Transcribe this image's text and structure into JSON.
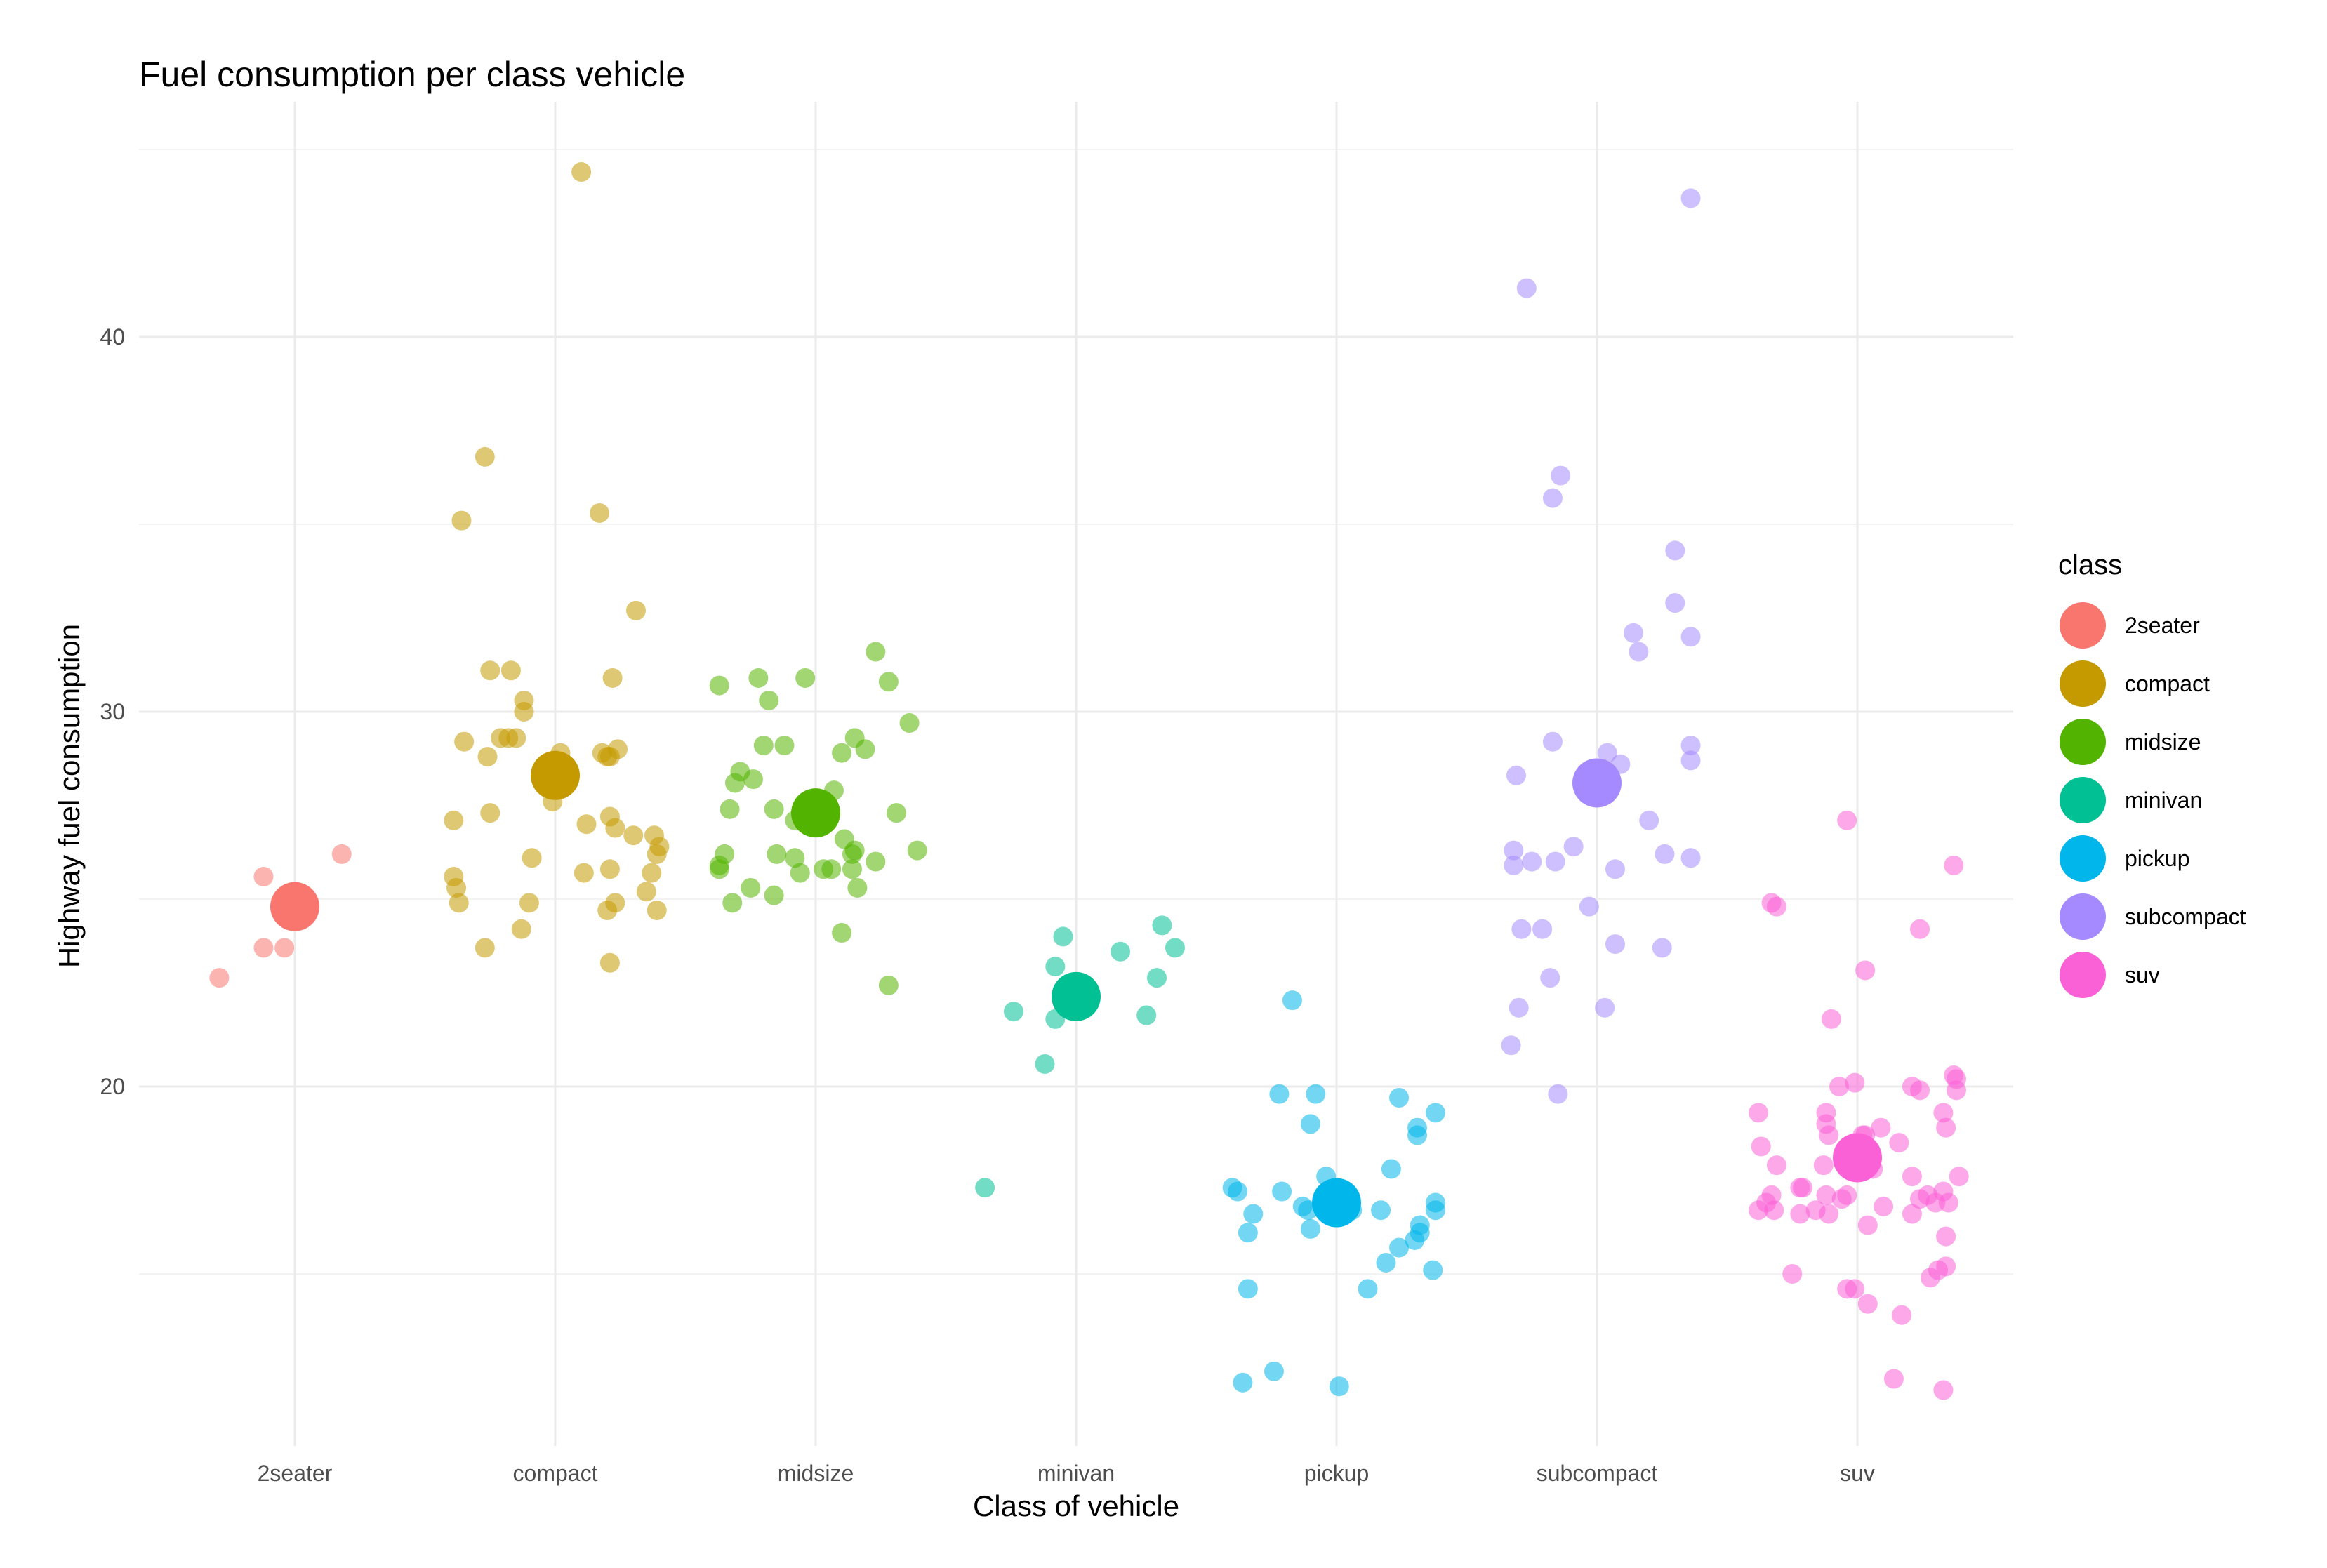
{
  "chart_data": {
    "type": "scatter",
    "title": "Fuel consumption per class vehicle",
    "xlabel": "Class of vehicle",
    "ylabel": "Highway fuel consumption",
    "categories": [
      "2seater",
      "compact",
      "midsize",
      "minivan",
      "pickup",
      "subcompact",
      "suv"
    ],
    "ylim": [
      10.5,
      45.5
    ],
    "yticks": [
      20,
      30,
      40
    ],
    "grid": true,
    "legend": {
      "title": "class",
      "placement": "right"
    },
    "colors": [
      "#F8766D",
      "#C49A00",
      "#53B400",
      "#00C094",
      "#00B6EB",
      "#A58AFF",
      "#FB61D7"
    ],
    "series": [
      {
        "name": "2seater",
        "mean": 24.8,
        "points": [
          [
            -0.12,
            23.7
          ],
          [
            -0.29,
            22.9
          ],
          [
            -0.12,
            25.6
          ],
          [
            0.18,
            26.2
          ],
          [
            -0.04,
            23.7
          ]
        ]
      },
      {
        "name": "compact",
        "mean": 28.3,
        "points": [
          [
            0.1,
            44.4
          ],
          [
            -0.27,
            36.8
          ],
          [
            -0.36,
            35.1
          ],
          [
            0.17,
            35.3
          ],
          [
            0.31,
            32.7
          ],
          [
            -0.25,
            31.1
          ],
          [
            -0.17,
            31.1
          ],
          [
            0.22,
            30.9
          ],
          [
            -0.12,
            30.3
          ],
          [
            -0.12,
            30.0
          ],
          [
            -0.35,
            29.2
          ],
          [
            -0.21,
            29.3
          ],
          [
            -0.18,
            29.3
          ],
          [
            -0.15,
            29.3
          ],
          [
            0.02,
            28.9
          ],
          [
            0.18,
            28.9
          ],
          [
            0.24,
            29.0
          ],
          [
            0.2,
            28.8
          ],
          [
            0.21,
            28.8
          ],
          [
            -0.26,
            28.8
          ],
          [
            -0.01,
            27.6
          ],
          [
            -0.39,
            27.1
          ],
          [
            -0.25,
            27.3
          ],
          [
            0.12,
            27.0
          ],
          [
            0.21,
            27.2
          ],
          [
            0.23,
            26.9
          ],
          [
            0.3,
            26.7
          ],
          [
            0.38,
            26.7
          ],
          [
            0.4,
            26.4
          ],
          [
            0.39,
            26.2
          ],
          [
            -0.09,
            26.1
          ],
          [
            -0.39,
            25.6
          ],
          [
            0.11,
            25.7
          ],
          [
            0.21,
            25.8
          ],
          [
            0.37,
            25.7
          ],
          [
            -0.38,
            25.3
          ],
          [
            0.35,
            25.2
          ],
          [
            -0.37,
            24.9
          ],
          [
            -0.1,
            24.9
          ],
          [
            0.23,
            24.9
          ],
          [
            0.2,
            24.7
          ],
          [
            0.39,
            24.7
          ],
          [
            -0.13,
            24.2
          ],
          [
            -0.27,
            23.7
          ],
          [
            0.21,
            23.3
          ]
        ]
      },
      {
        "name": "midsize",
        "mean": 27.3,
        "points": [
          [
            0.23,
            31.6
          ],
          [
            -0.37,
            30.7
          ],
          [
            -0.22,
            30.9
          ],
          [
            -0.04,
            30.9
          ],
          [
            -0.18,
            30.3
          ],
          [
            0.28,
            30.8
          ],
          [
            0.36,
            29.7
          ],
          [
            -0.2,
            29.1
          ],
          [
            -0.12,
            29.1
          ],
          [
            0.15,
            29.3
          ],
          [
            0.19,
            29.0
          ],
          [
            0.1,
            28.9
          ],
          [
            -0.29,
            28.4
          ],
          [
            -0.31,
            28.1
          ],
          [
            -0.24,
            28.2
          ],
          [
            0.07,
            27.9
          ],
          [
            -0.33,
            27.4
          ],
          [
            -0.16,
            27.4
          ],
          [
            -0.08,
            27.1
          ],
          [
            0.31,
            27.3
          ],
          [
            0.11,
            26.6
          ],
          [
            0.14,
            26.2
          ],
          [
            0.15,
            26.3
          ],
          [
            0.23,
            26.0
          ],
          [
            0.39,
            26.3
          ],
          [
            -0.35,
            26.2
          ],
          [
            -0.37,
            25.9
          ],
          [
            -0.15,
            26.2
          ],
          [
            -0.08,
            26.1
          ],
          [
            -0.06,
            25.7
          ],
          [
            0.03,
            25.8
          ],
          [
            0.06,
            25.8
          ],
          [
            0.14,
            25.8
          ],
          [
            -0.37,
            25.8
          ],
          [
            -0.25,
            25.3
          ],
          [
            -0.16,
            25.1
          ],
          [
            0.16,
            25.3
          ],
          [
            -0.32,
            24.9
          ],
          [
            0.1,
            24.1
          ],
          [
            0.28,
            22.7
          ]
        ]
      },
      {
        "name": "minivan",
        "mean": 22.4,
        "points": [
          [
            -0.05,
            24.0
          ],
          [
            0.33,
            24.3
          ],
          [
            0.38,
            23.7
          ],
          [
            0.17,
            23.6
          ],
          [
            -0.08,
            23.2
          ],
          [
            0.31,
            22.9
          ],
          [
            -0.24,
            22.0
          ],
          [
            -0.08,
            21.8
          ],
          [
            0.27,
            21.9
          ],
          [
            -0.12,
            20.6
          ],
          [
            -0.35,
            17.3
          ]
        ]
      },
      {
        "name": "pickup",
        "mean": 16.9,
        "points": [
          [
            -0.17,
            22.3
          ],
          [
            -0.22,
            19.8
          ],
          [
            -0.08,
            19.8
          ],
          [
            0.24,
            19.7
          ],
          [
            0.38,
            19.3
          ],
          [
            0.31,
            18.9
          ],
          [
            0.31,
            18.7
          ],
          [
            -0.1,
            19.0
          ],
          [
            -0.04,
            17.6
          ],
          [
            0.21,
            17.8
          ],
          [
            -0.4,
            17.3
          ],
          [
            -0.38,
            17.2
          ],
          [
            -0.21,
            17.2
          ],
          [
            -0.13,
            16.8
          ],
          [
            -0.11,
            16.7
          ],
          [
            -0.32,
            16.6
          ],
          [
            0.06,
            16.7
          ],
          [
            0.17,
            16.7
          ],
          [
            0.38,
            16.9
          ],
          [
            0.38,
            16.7
          ],
          [
            -0.34,
            16.1
          ],
          [
            -0.1,
            16.2
          ],
          [
            0.32,
            16.3
          ],
          [
            0.32,
            16.1
          ],
          [
            0.3,
            15.9
          ],
          [
            0.24,
            15.7
          ],
          [
            0.19,
            15.3
          ],
          [
            0.37,
            15.1
          ],
          [
            0.12,
            14.6
          ],
          [
            -0.34,
            14.6
          ],
          [
            -0.24,
            12.4
          ],
          [
            -0.36,
            12.1
          ],
          [
            0.01,
            12.0
          ]
        ]
      },
      {
        "name": "subcompact",
        "mean": 28.1,
        "points": [
          [
            0.36,
            43.7
          ],
          [
            -0.27,
            41.3
          ],
          [
            -0.14,
            36.3
          ],
          [
            -0.17,
            35.7
          ],
          [
            0.3,
            34.3
          ],
          [
            0.3,
            32.9
          ],
          [
            0.14,
            32.1
          ],
          [
            0.16,
            31.6
          ],
          [
            0.36,
            32.0
          ],
          [
            -0.17,
            29.2
          ],
          [
            0.04,
            28.9
          ],
          [
            0.09,
            28.6
          ],
          [
            0.36,
            29.1
          ],
          [
            0.36,
            28.7
          ],
          [
            -0.31,
            28.3
          ],
          [
            -0.02,
            28.3
          ],
          [
            0.2,
            27.1
          ],
          [
            -0.32,
            26.3
          ],
          [
            -0.16,
            26.0
          ],
          [
            -0.09,
            26.4
          ],
          [
            -0.32,
            25.9
          ],
          [
            -0.25,
            26.0
          ],
          [
            0.26,
            26.2
          ],
          [
            0.36,
            26.1
          ],
          [
            0.07,
            25.8
          ],
          [
            -0.03,
            24.8
          ],
          [
            -0.29,
            24.2
          ],
          [
            -0.21,
            24.2
          ],
          [
            0.07,
            23.8
          ],
          [
            0.25,
            23.7
          ],
          [
            -0.18,
            22.9
          ],
          [
            -0.3,
            22.1
          ],
          [
            0.03,
            22.1
          ],
          [
            -0.33,
            21.1
          ],
          [
            -0.15,
            19.8
          ]
        ]
      },
      {
        "name": "suv",
        "mean": 18.1,
        "points": [
          [
            -0.04,
            27.1
          ],
          [
            0.37,
            25.9
          ],
          [
            -0.33,
            24.9
          ],
          [
            -0.31,
            24.8
          ],
          [
            0.24,
            24.2
          ],
          [
            0.03,
            23.1
          ],
          [
            -0.1,
            21.8
          ],
          [
            0.37,
            20.3
          ],
          [
            0.38,
            20.2
          ],
          [
            0.38,
            19.9
          ],
          [
            -0.01,
            20.1
          ],
          [
            0.21,
            20.0
          ],
          [
            0.24,
            19.9
          ],
          [
            -0.07,
            20.0
          ],
          [
            -0.38,
            19.3
          ],
          [
            -0.12,
            19.3
          ],
          [
            -0.12,
            19.0
          ],
          [
            0.02,
            18.7
          ],
          [
            0.03,
            18.7
          ],
          [
            0.09,
            18.9
          ],
          [
            0.33,
            19.3
          ],
          [
            0.34,
            18.9
          ],
          [
            -0.11,
            18.7
          ],
          [
            0.16,
            18.5
          ],
          [
            -0.37,
            18.4
          ],
          [
            -0.13,
            17.9
          ],
          [
            -0.31,
            17.9
          ],
          [
            0.06,
            17.8
          ],
          [
            0.21,
            17.6
          ],
          [
            0.39,
            17.6
          ],
          [
            -0.22,
            17.3
          ],
          [
            -0.21,
            17.3
          ],
          [
            -0.12,
            17.1
          ],
          [
            -0.06,
            17.0
          ],
          [
            -0.33,
            17.1
          ],
          [
            -0.32,
            16.7
          ],
          [
            -0.35,
            16.9
          ],
          [
            -0.16,
            16.7
          ],
          [
            -0.11,
            16.6
          ],
          [
            -0.04,
            17.1
          ],
          [
            0.1,
            16.8
          ],
          [
            0.21,
            16.6
          ],
          [
            0.24,
            17.0
          ],
          [
            0.27,
            17.1
          ],
          [
            0.3,
            16.9
          ],
          [
            0.33,
            17.2
          ],
          [
            0.35,
            16.9
          ],
          [
            -0.38,
            16.7
          ],
          [
            -0.22,
            16.6
          ],
          [
            0.04,
            16.3
          ],
          [
            0.34,
            16.0
          ],
          [
            -0.25,
            15.0
          ],
          [
            0.34,
            15.2
          ],
          [
            0.31,
            15.1
          ],
          [
            0.28,
            14.9
          ],
          [
            -0.04,
            14.6
          ],
          [
            -0.01,
            14.6
          ],
          [
            0.04,
            14.2
          ],
          [
            0.17,
            13.9
          ],
          [
            0.14,
            12.2
          ],
          [
            0.33,
            11.9
          ]
        ]
      }
    ]
  }
}
